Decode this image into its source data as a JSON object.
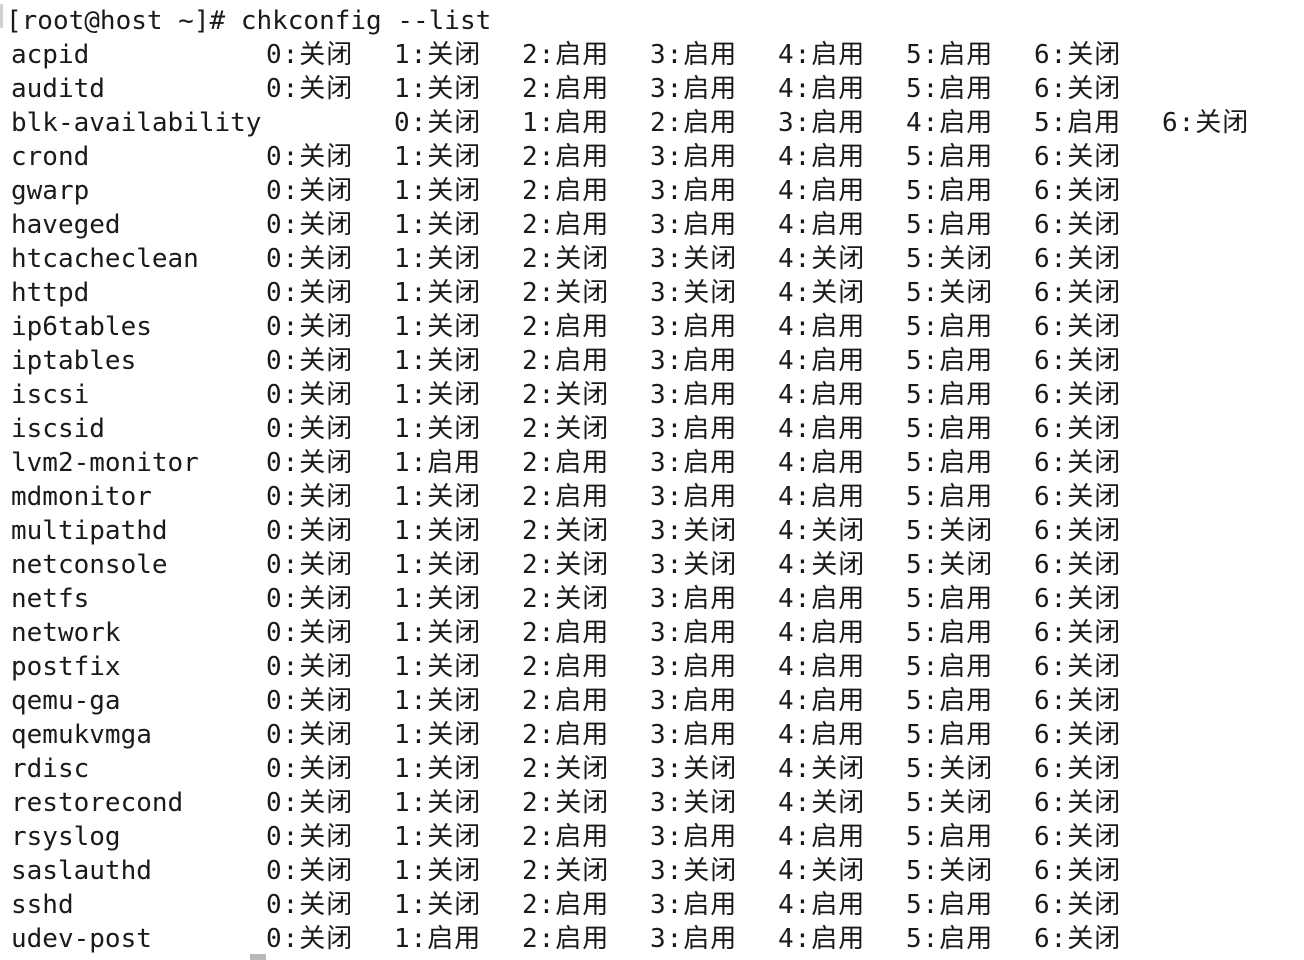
{
  "terminal": {
    "prompt": "[root@host ~]# ",
    "command": "chkconfig --list"
  },
  "services": [
    {
      "name": "acpid",
      "levels": [
        "0:关闭",
        "1:关闭",
        "2:启用",
        "3:启用",
        "4:启用",
        "5:启用",
        "6:关闭"
      ]
    },
    {
      "name": "auditd",
      "levels": [
        "0:关闭",
        "1:关闭",
        "2:启用",
        "3:启用",
        "4:启用",
        "5:启用",
        "6:关闭"
      ]
    },
    {
      "name": "blk-availability",
      "wide": true,
      "levels": [
        "0:关闭",
        "1:启用",
        "2:启用",
        "3:启用",
        "4:启用",
        "5:启用",
        "6:关闭"
      ]
    },
    {
      "name": "crond",
      "levels": [
        "0:关闭",
        "1:关闭",
        "2:启用",
        "3:启用",
        "4:启用",
        "5:启用",
        "6:关闭"
      ]
    },
    {
      "name": "gwarp",
      "levels": [
        "0:关闭",
        "1:关闭",
        "2:启用",
        "3:启用",
        "4:启用",
        "5:启用",
        "6:关闭"
      ]
    },
    {
      "name": "haveged",
      "levels": [
        "0:关闭",
        "1:关闭",
        "2:启用",
        "3:启用",
        "4:启用",
        "5:启用",
        "6:关闭"
      ]
    },
    {
      "name": "htcacheclean",
      "levels": [
        "0:关闭",
        "1:关闭",
        "2:关闭",
        "3:关闭",
        "4:关闭",
        "5:关闭",
        "6:关闭"
      ]
    },
    {
      "name": "httpd",
      "levels": [
        "0:关闭",
        "1:关闭",
        "2:关闭",
        "3:关闭",
        "4:关闭",
        "5:关闭",
        "6:关闭"
      ]
    },
    {
      "name": "ip6tables",
      "levels": [
        "0:关闭",
        "1:关闭",
        "2:启用",
        "3:启用",
        "4:启用",
        "5:启用",
        "6:关闭"
      ]
    },
    {
      "name": "iptables",
      "levels": [
        "0:关闭",
        "1:关闭",
        "2:启用",
        "3:启用",
        "4:启用",
        "5:启用",
        "6:关闭"
      ]
    },
    {
      "name": "iscsi",
      "levels": [
        "0:关闭",
        "1:关闭",
        "2:关闭",
        "3:启用",
        "4:启用",
        "5:启用",
        "6:关闭"
      ]
    },
    {
      "name": "iscsid",
      "levels": [
        "0:关闭",
        "1:关闭",
        "2:关闭",
        "3:启用",
        "4:启用",
        "5:启用",
        "6:关闭"
      ]
    },
    {
      "name": "lvm2-monitor",
      "levels": [
        "0:关闭",
        "1:启用",
        "2:启用",
        "3:启用",
        "4:启用",
        "5:启用",
        "6:关闭"
      ]
    },
    {
      "name": "mdmonitor",
      "levels": [
        "0:关闭",
        "1:关闭",
        "2:启用",
        "3:启用",
        "4:启用",
        "5:启用",
        "6:关闭"
      ]
    },
    {
      "name": "multipathd",
      "levels": [
        "0:关闭",
        "1:关闭",
        "2:关闭",
        "3:关闭",
        "4:关闭",
        "5:关闭",
        "6:关闭"
      ]
    },
    {
      "name": "netconsole",
      "levels": [
        "0:关闭",
        "1:关闭",
        "2:关闭",
        "3:关闭",
        "4:关闭",
        "5:关闭",
        "6:关闭"
      ]
    },
    {
      "name": "netfs",
      "levels": [
        "0:关闭",
        "1:关闭",
        "2:关闭",
        "3:启用",
        "4:启用",
        "5:启用",
        "6:关闭"
      ]
    },
    {
      "name": "network",
      "levels": [
        "0:关闭",
        "1:关闭",
        "2:启用",
        "3:启用",
        "4:启用",
        "5:启用",
        "6:关闭"
      ]
    },
    {
      "name": "postfix",
      "levels": [
        "0:关闭",
        "1:关闭",
        "2:启用",
        "3:启用",
        "4:启用",
        "5:启用",
        "6:关闭"
      ]
    },
    {
      "name": "qemu-ga",
      "levels": [
        "0:关闭",
        "1:关闭",
        "2:启用",
        "3:启用",
        "4:启用",
        "5:启用",
        "6:关闭"
      ]
    },
    {
      "name": "qemukvmga",
      "levels": [
        "0:关闭",
        "1:关闭",
        "2:启用",
        "3:启用",
        "4:启用",
        "5:启用",
        "6:关闭"
      ]
    },
    {
      "name": "rdisc",
      "levels": [
        "0:关闭",
        "1:关闭",
        "2:关闭",
        "3:关闭",
        "4:关闭",
        "5:关闭",
        "6:关闭"
      ]
    },
    {
      "name": "restorecond",
      "levels": [
        "0:关闭",
        "1:关闭",
        "2:关闭",
        "3:关闭",
        "4:关闭",
        "5:关闭",
        "6:关闭"
      ]
    },
    {
      "name": "rsyslog",
      "levels": [
        "0:关闭",
        "1:关闭",
        "2:启用",
        "3:启用",
        "4:启用",
        "5:启用",
        "6:关闭"
      ]
    },
    {
      "name": "saslauthd",
      "levels": [
        "0:关闭",
        "1:关闭",
        "2:关闭",
        "3:关闭",
        "4:关闭",
        "5:关闭",
        "6:关闭"
      ]
    },
    {
      "name": "sshd",
      "levels": [
        "0:关闭",
        "1:关闭",
        "2:启用",
        "3:启用",
        "4:启用",
        "5:启用",
        "6:关闭"
      ]
    },
    {
      "name": "udev-post",
      "levels": [
        "0:关闭",
        "1:启用",
        "2:启用",
        "3:启用",
        "4:启用",
        "5:启用",
        "6:关闭"
      ]
    }
  ]
}
